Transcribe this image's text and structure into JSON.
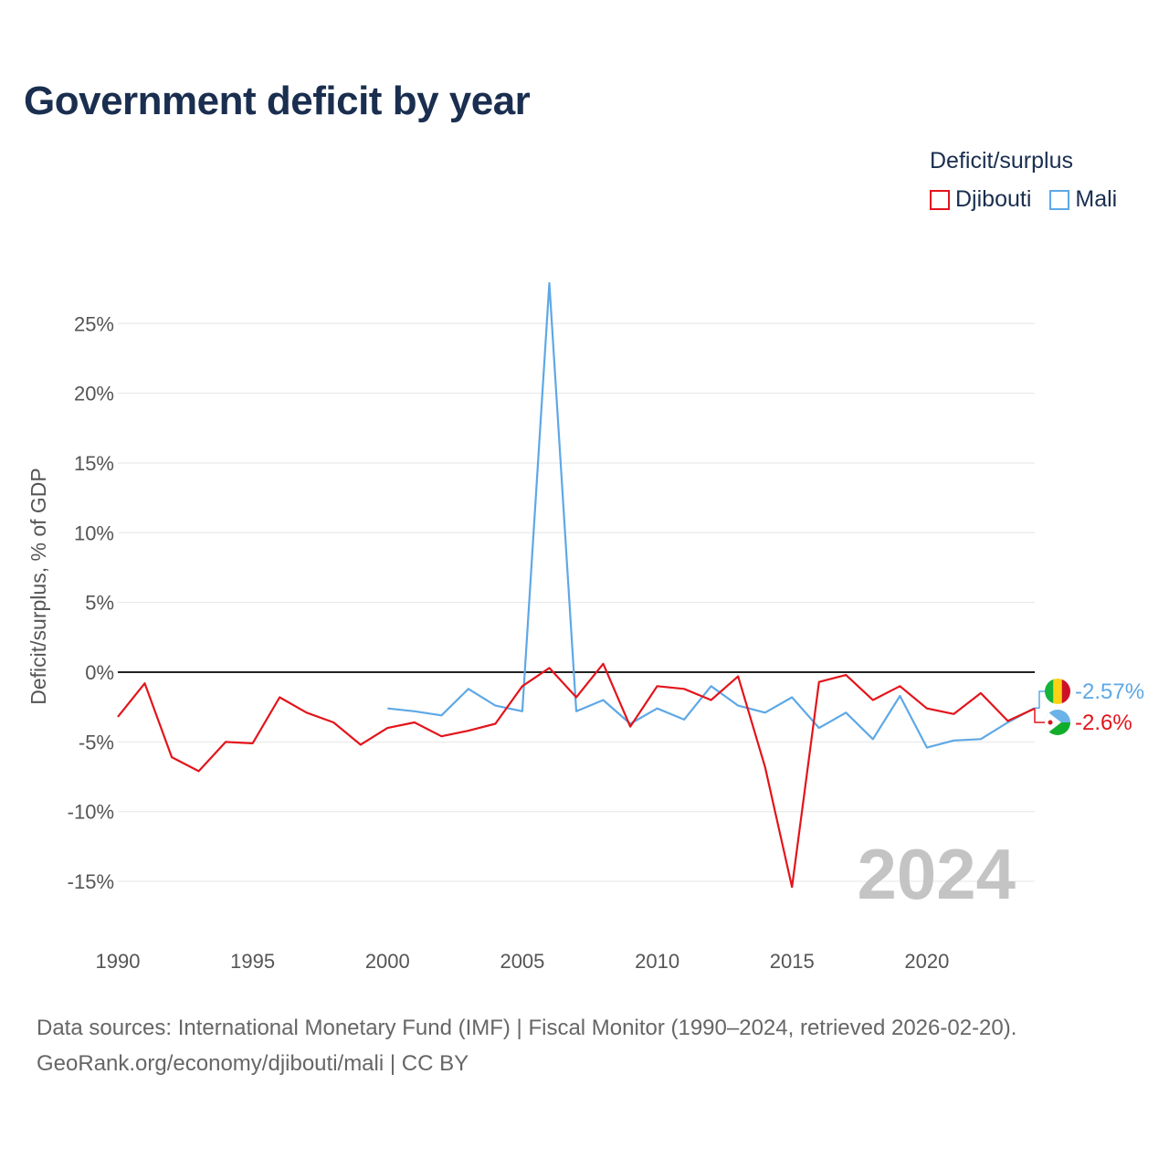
{
  "title": "Government deficit by year",
  "legend": {
    "title": "Deficit/surplus",
    "items": [
      {
        "name": "Djibouti",
        "color": "#e3141b"
      },
      {
        "name": "Mali",
        "color": "#5ea8e6"
      }
    ]
  },
  "source_line1": "Data sources: International Monetary Fund (IMF) | Fiscal Monitor (1990–2024, retrieved 2026-02-20).",
  "source_line2": "GeoRank.org/economy/djibouti/mali | CC BY",
  "watermark_year": "2024",
  "end_labels": {
    "mali": "-2.57%",
    "djibouti": "-2.6%"
  },
  "chart_data": {
    "type": "line",
    "ylabel": "Deficit/surplus, % of GDP",
    "xlabel": "",
    "xlim": [
      1990,
      2024
    ],
    "ylim": [
      -18,
      29
    ],
    "x_ticks": [
      1990,
      1995,
      2000,
      2005,
      2010,
      2015,
      2020
    ],
    "y_ticks": [
      25,
      20,
      15,
      10,
      5,
      0,
      -5,
      -10,
      -15
    ],
    "y_tick_labels": [
      "25%",
      "20%",
      "15%",
      "10%",
      "5%",
      "0%",
      "-5%",
      "-10%",
      "-15%"
    ],
    "grid": true,
    "legend_position": "top-right",
    "series": [
      {
        "name": "Djibouti",
        "color": "#e3141b",
        "x": [
          1990,
          1991,
          1992,
          1993,
          1994,
          1995,
          1996,
          1997,
          1998,
          1999,
          2000,
          2001,
          2002,
          2003,
          2004,
          2005,
          2006,
          2007,
          2008,
          2009,
          2010,
          2011,
          2012,
          2013,
          2014,
          2015,
          2016,
          2017,
          2018,
          2019,
          2020,
          2021,
          2022,
          2023,
          2024
        ],
        "values": [
          -3.2,
          -0.8,
          -6.1,
          -7.1,
          -5.0,
          -5.1,
          -1.8,
          -2.9,
          -3.6,
          -5.2,
          -4.0,
          -3.6,
          -4.6,
          -4.2,
          -3.7,
          -1.0,
          0.3,
          -1.8,
          0.6,
          -3.9,
          -1.0,
          -1.2,
          -2.0,
          -0.3,
          -6.8,
          -15.4,
          -0.7,
          -0.2,
          -2.0,
          -1.0,
          -2.6,
          -3.0,
          -1.5,
          -3.5,
          -2.6
        ]
      },
      {
        "name": "Mali",
        "color": "#5ea8e6",
        "x": [
          2000,
          2001,
          2002,
          2003,
          2004,
          2005,
          2006,
          2007,
          2008,
          2009,
          2010,
          2011,
          2012,
          2013,
          2014,
          2015,
          2016,
          2017,
          2018,
          2019,
          2020,
          2021,
          2022,
          2023,
          2024
        ],
        "values": [
          -2.6,
          -2.8,
          -3.1,
          -1.2,
          -2.4,
          -2.8,
          27.9,
          -2.8,
          -2.0,
          -3.7,
          -2.6,
          -3.4,
          -1.0,
          -2.4,
          -2.9,
          -1.8,
          -4.0,
          -2.9,
          -4.8,
          -1.7,
          -5.4,
          -4.9,
          -4.8,
          -3.6,
          -2.57
        ]
      }
    ]
  }
}
